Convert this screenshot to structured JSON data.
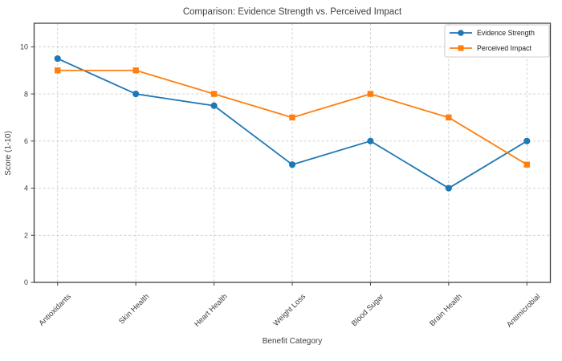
{
  "chart_data": {
    "type": "line",
    "title": "Comparison: Evidence Strength vs. Perceived Impact",
    "xlabel": "Benefit Category",
    "ylabel": "Score (1-10)",
    "categories": [
      "Antioxidants",
      "Skin Health",
      "Heart Health",
      "Weight Loss",
      "Blood Sugar",
      "Brain Health",
      "Antimicrobial"
    ],
    "series": [
      {
        "name": "Evidence Strength",
        "marker": "circle",
        "color": "#1f77b4",
        "values": [
          9.5,
          8,
          7.5,
          5,
          6,
          4,
          6
        ]
      },
      {
        "name": "Perceived Impact",
        "marker": "square",
        "color": "#ff7f0e",
        "values": [
          9,
          9,
          8,
          7,
          8,
          7,
          5
        ]
      }
    ],
    "ylim": [
      0,
      11
    ],
    "yticks": [
      0,
      2,
      4,
      6,
      8,
      10
    ],
    "grid": true,
    "grid_style": "dashed",
    "legend_position": "upper right",
    "background_color": "#ffffff",
    "axis_color": "#3c4043",
    "grid_color": "#cccccc"
  }
}
